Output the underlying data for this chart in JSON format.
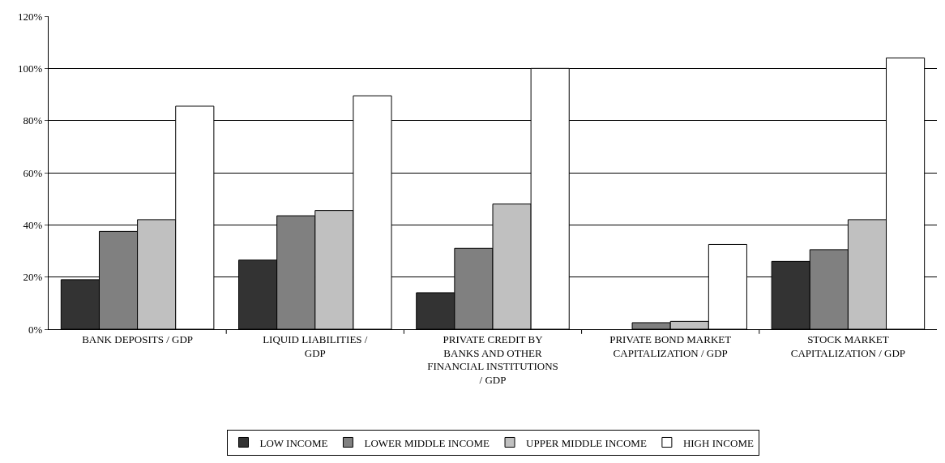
{
  "chart_data": {
    "type": "bar",
    "categories": [
      "BANK DEPOSITS / GDP",
      "LIQUID LIABILITIES / GDP",
      "PRIVATE CREDIT BY BANKS AND OTHER FINANCIAL INSTITUTIONS / GDP",
      "PRIVATE BOND MARKET CAPITALIZATION / GDP",
      "STOCK MARKET CAPITALIZATION / GDP"
    ],
    "series": [
      {
        "name": "LOW INCOME",
        "color": "#333333",
        "values": [
          19,
          26.5,
          14,
          null,
          26
        ]
      },
      {
        "name": "LOWER MIDDLE INCOME",
        "color": "#808080",
        "values": [
          37.5,
          43.5,
          31,
          2.5,
          30.5
        ]
      },
      {
        "name": "UPPER MIDDLE INCOME",
        "color": "#c0c0c0",
        "values": [
          42,
          45.5,
          48,
          3,
          42
        ]
      },
      {
        "name": "HIGH INCOME",
        "color": "#ffffff",
        "values": [
          85.5,
          89.5,
          100,
          32.5,
          104
        ]
      }
    ],
    "ylim": [
      0,
      120
    ],
    "yticks": [
      {
        "value": 0,
        "label": "0%"
      },
      {
        "value": 20,
        "label": "20%"
      },
      {
        "value": 40,
        "label": "40%"
      },
      {
        "value": 60,
        "label": "60%"
      },
      {
        "value": 80,
        "label": "80%"
      },
      {
        "value": 100,
        "label": "100%"
      },
      {
        "value": 120,
        "label": "120%"
      }
    ],
    "grid": "y",
    "legend": "bottom"
  }
}
